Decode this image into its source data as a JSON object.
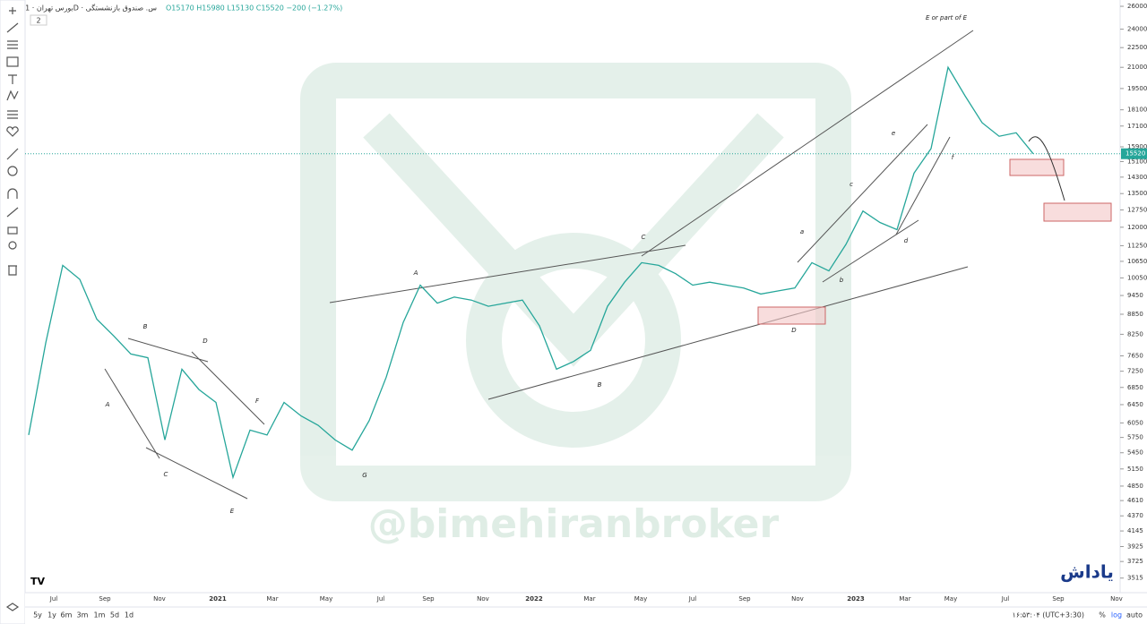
{
  "header": {
    "symbol": "بورس تهران · 1D · س. صندوق بازنشستگی",
    "ohlc": "O15170 H15980 L15130 C15520 −200 (−1.27%)",
    "badge": "2"
  },
  "price_axis": {
    "scale": "log",
    "ylim": [
      3340,
      26580
    ],
    "ticks": [
      26000,
      24000,
      22500,
      21000,
      19500,
      18100,
      17100,
      15900,
      15100,
      14300,
      13500,
      12750,
      12000,
      11250,
      10650,
      10050,
      9450,
      8850,
      8250,
      7650,
      7250,
      6850,
      6450,
      6050,
      5750,
      5450,
      5150,
      4850,
      4610,
      4370,
      4145,
      3925,
      3725,
      3515
    ],
    "last_price": 15520
  },
  "time_axis": [
    "Jul",
    "Sep",
    "Nov",
    "2021",
    "Mar",
    "May",
    "Jul",
    "Sep",
    "Nov",
    "2022",
    "Mar",
    "May",
    "Jul",
    "Sep",
    "Nov",
    "2023",
    "Mar",
    "May",
    "Jul",
    "Sep",
    "Nov"
  ],
  "price_history": {
    "type": "line",
    "color": "#26a69a",
    "values": [
      5800,
      8000,
      10500,
      10000,
      8700,
      8200,
      7700,
      7600,
      5700,
      7300,
      6800,
      6500,
      5000,
      5900,
      5800,
      6500,
      6200,
      6000,
      5700,
      5500,
      6100,
      7100,
      8600,
      9800,
      9200,
      9400,
      9300,
      9100,
      9200,
      9300,
      8500,
      7300,
      7500,
      7800,
      9100,
      9900,
      10600,
      10500,
      10200,
      9800,
      9900,
      9800,
      9700,
      9500,
      9600,
      9700,
      10600,
      10300,
      11300,
      12700,
      12200,
      11900,
      14500,
      15800,
      21000,
      19000,
      17300,
      16500,
      16700,
      15520
    ]
  },
  "annotations": [
    "A",
    "B",
    "C",
    "D",
    "E",
    "F",
    "G",
    "A",
    "B",
    "C",
    "D",
    "a",
    "b",
    "c",
    "d",
    "e",
    "f",
    "E or part of E"
  ],
  "watermark": "@bimehiranbroker",
  "logo": "یاداش",
  "bottom_bar": {
    "ranges": [
      "5y",
      "1y",
      "6m",
      "3m",
      "1m",
      "5d",
      "1d"
    ],
    "clock": "۱۶:۵۳:۰۴ (UTC+3:30)",
    "options": [
      "%",
      "log",
      "auto"
    ]
  }
}
